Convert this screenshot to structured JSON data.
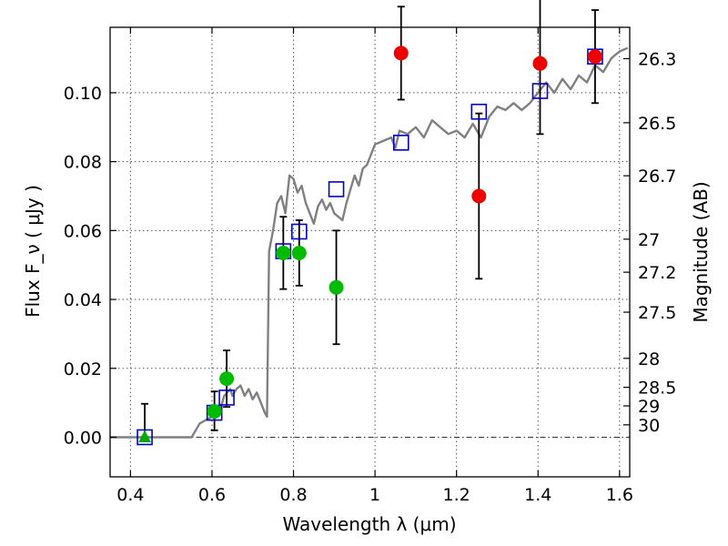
{
  "chart_data": {
    "type": "scatter",
    "xlabel": "Wavelength  λ (μm)",
    "ylabel": "Flux  F_ν  ( μJy )",
    "ylabel_right": "Magnitude (AB)",
    "xlim": [
      0.35,
      1.625
    ],
    "ylim": [
      -0.0115,
      0.119
    ],
    "x_ticks": [
      0.4,
      0.6,
      0.8,
      1.0,
      1.2,
      1.4,
      1.6
    ],
    "x_tick_labels": [
      "0.4",
      "0.6",
      "0.8",
      "1",
      "1.2",
      "1.4",
      "1.6"
    ],
    "y_ticks": [
      0.0,
      0.02,
      0.04,
      0.06,
      0.08,
      0.1
    ],
    "y_tick_labels": [
      "0.00",
      "0.02",
      "0.04",
      "0.06",
      "0.08",
      "0.10"
    ],
    "right_ticks": [
      {
        "label": "26.3",
        "flux": 0.1099
      },
      {
        "label": "26.5",
        "flux": 0.0913
      },
      {
        "label": "26.7",
        "flux": 0.0759
      },
      {
        "label": "27",
        "flux": 0.0575
      },
      {
        "label": "27.2",
        "flux": 0.0479
      },
      {
        "label": "27.5",
        "flux": 0.0363
      },
      {
        "label": "28",
        "flux": 0.0229
      },
      {
        "label": "28.5",
        "flux": 0.0145
      },
      {
        "label": "29",
        "flux": 0.0091
      },
      {
        "label": "30",
        "flux": 0.0036
      }
    ],
    "grid": true,
    "zero_line": true,
    "model_spectrum": {
      "x": [
        0.35,
        0.55,
        0.57,
        0.6,
        0.62,
        0.63,
        0.645,
        0.65,
        0.66,
        0.67,
        0.68,
        0.69,
        0.7,
        0.71,
        0.72,
        0.73,
        0.735,
        0.74,
        0.75,
        0.76,
        0.77,
        0.78,
        0.79,
        0.8,
        0.81,
        0.82,
        0.83,
        0.84,
        0.85,
        0.86,
        0.87,
        0.88,
        0.89,
        0.9,
        0.91,
        0.92,
        0.93,
        0.94,
        0.95,
        0.96,
        0.97,
        0.98,
        0.99,
        1.0,
        1.02,
        1.04,
        1.05,
        1.06,
        1.08,
        1.1,
        1.12,
        1.14,
        1.16,
        1.18,
        1.2,
        1.22,
        1.24,
        1.26,
        1.28,
        1.3,
        1.32,
        1.34,
        1.36,
        1.38,
        1.4,
        1.42,
        1.44,
        1.46,
        1.48,
        1.5,
        1.52,
        1.54,
        1.56,
        1.58,
        1.6,
        1.62
      ],
      "y": [
        0.0,
        0.0,
        0.004,
        0.006,
        0.008,
        0.012,
        0.014,
        0.012,
        0.014,
        0.015,
        0.012,
        0.014,
        0.011,
        0.013,
        0.01,
        0.007,
        0.006,
        0.054,
        0.06,
        0.068,
        0.07,
        0.065,
        0.076,
        0.075,
        0.071,
        0.073,
        0.068,
        0.065,
        0.062,
        0.067,
        0.069,
        0.066,
        0.068,
        0.065,
        0.064,
        0.063,
        0.068,
        0.072,
        0.076,
        0.073,
        0.078,
        0.079,
        0.082,
        0.085,
        0.086,
        0.087,
        0.084,
        0.089,
        0.088,
        0.09,
        0.087,
        0.092,
        0.09,
        0.088,
        0.089,
        0.087,
        0.091,
        0.087,
        0.093,
        0.096,
        0.095,
        0.097,
        0.095,
        0.097,
        0.1,
        0.103,
        0.1,
        0.104,
        0.101,
        0.105,
        0.103,
        0.108,
        0.106,
        0.11,
        0.112,
        0.113
      ],
      "color": "#808080"
    },
    "model_photometry": {
      "marker": "open-square",
      "color": "#0000cc",
      "x": [
        0.435,
        0.606,
        0.636,
        0.775,
        0.814,
        0.905,
        1.064,
        1.255,
        1.405,
        1.54
      ],
      "y": [
        0.0,
        0.0071,
        0.0115,
        0.054,
        0.0597,
        0.072,
        0.0855,
        0.0945,
        0.1005,
        0.1105
      ]
    },
    "observed": [
      {
        "x": 0.435,
        "y": 0.0,
        "err_lo": 0.0,
        "err_hi": 0.0097,
        "marker": "triangle",
        "color": "#00aa00"
      },
      {
        "x": 0.606,
        "y": 0.0075,
        "err_lo": 0.0055,
        "err_hi": 0.0058,
        "marker": "circle",
        "color": "#00bb00"
      },
      {
        "x": 0.636,
        "y": 0.017,
        "err_lo": 0.0082,
        "err_hi": 0.0082,
        "marker": "circle",
        "color": "#00bb00"
      },
      {
        "x": 0.775,
        "y": 0.0535,
        "err_lo": 0.0105,
        "err_hi": 0.0105,
        "marker": "circle",
        "color": "#00bb00"
      },
      {
        "x": 0.814,
        "y": 0.0535,
        "err_lo": 0.0095,
        "err_hi": 0.0095,
        "marker": "circle",
        "color": "#00bb00"
      },
      {
        "x": 0.905,
        "y": 0.0435,
        "err_lo": 0.0165,
        "err_hi": 0.0165,
        "marker": "circle",
        "color": "#00bb00"
      },
      {
        "x": 1.064,
        "y": 0.1115,
        "err_lo": 0.0135,
        "err_hi": 0.0135,
        "marker": "circle",
        "color": "#ee0000"
      },
      {
        "x": 1.255,
        "y": 0.07,
        "err_lo": 0.024,
        "err_hi": 0.024,
        "marker": "circle",
        "color": "#ee0000"
      },
      {
        "x": 1.405,
        "y": 0.1085,
        "err_lo": 0.0205,
        "err_hi": 0.0205,
        "marker": "circle",
        "color": "#ee0000"
      },
      {
        "x": 1.54,
        "y": 0.1105,
        "err_lo": 0.0135,
        "err_hi": 0.0135,
        "marker": "circle",
        "color": "#ee0000"
      }
    ]
  }
}
